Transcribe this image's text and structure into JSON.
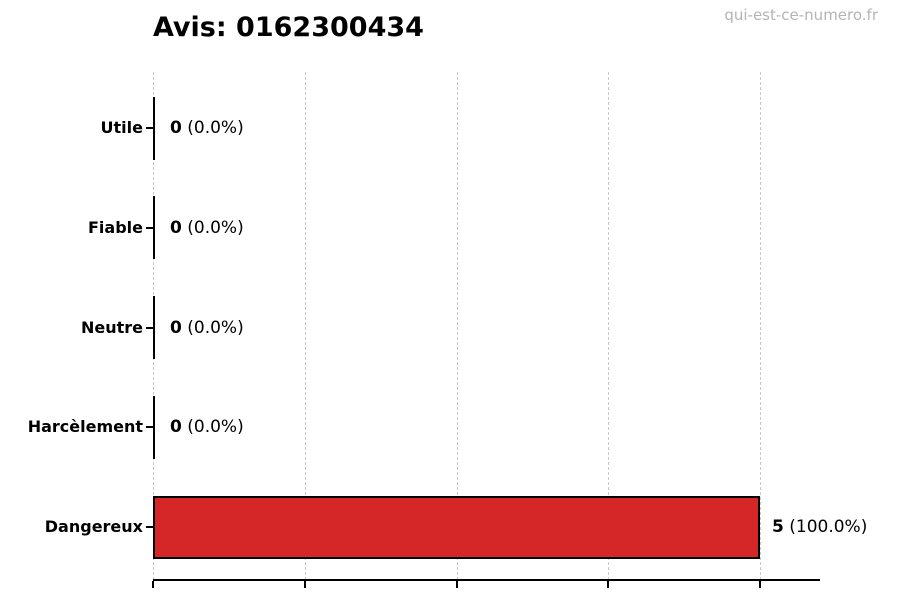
{
  "header": {
    "watermark": "qui-est-ce-numero.fr"
  },
  "colors": {
    "bar_fill": "#d62728",
    "bar_edge": "#000000",
    "grid": "#c9c9c9",
    "axis": "#000000",
    "watermark": "#b4b4b4",
    "text": "#000000"
  },
  "chart_data": {
    "type": "bar",
    "orientation": "horizontal",
    "title": "Avis: 0162300434",
    "categories": [
      "Utile",
      "Fiable",
      "Neutre",
      "Harcèlement",
      "Dangereux"
    ],
    "values": [
      0,
      0,
      0,
      0,
      5
    ],
    "percent_labels": [
      "(0.0%)",
      "(0.0%)",
      "(0.0%)",
      "(0.0%)",
      "(100.0%)"
    ],
    "total_votes": 5,
    "xlim": [
      0,
      5.5
    ],
    "xticks": [
      0,
      1.25,
      2.5,
      3.75,
      5
    ],
    "xtick_labels": [
      "",
      "",
      "",
      "",
      ""
    ],
    "grid": "vertical-dashed",
    "legend": "none",
    "bar_color": "#d62728"
  }
}
